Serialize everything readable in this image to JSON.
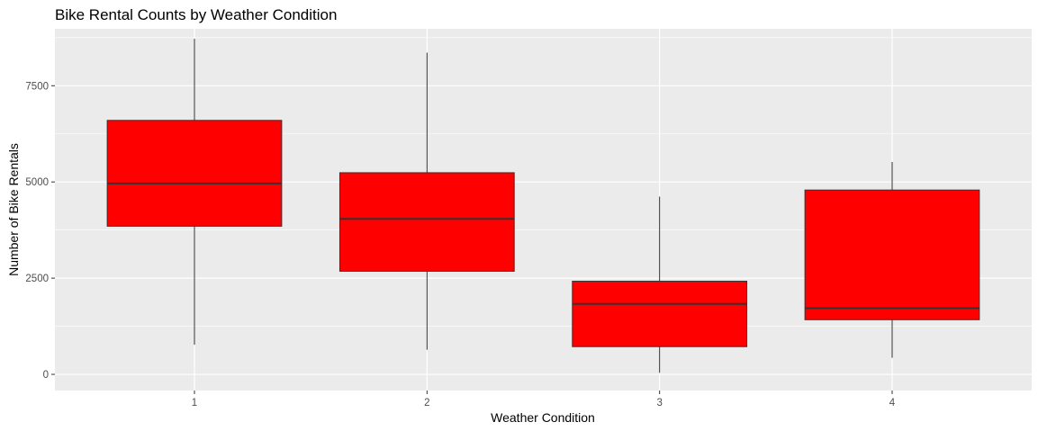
{
  "chart_data": {
    "type": "box",
    "title": "Bike Rental Counts by Weather Condition",
    "xlabel": "Weather Condition",
    "ylabel": "Number of Bike Rentals",
    "categories": [
      "1",
      "2",
      "3",
      "4"
    ],
    "ylim": [
      -420,
      8980
    ],
    "yticks": [
      0,
      2500,
      5000,
      7500
    ],
    "ytick_labels": [
      "0",
      "2500",
      "5000",
      "7500"
    ],
    "grid": true,
    "legend": "none",
    "series": [
      {
        "boxes": [
          {
            "category": "1",
            "min": 770,
            "q1": 3850,
            "median": 4960,
            "q3": 6600,
            "max": 8720
          },
          {
            "category": "2",
            "min": 640,
            "q1": 2680,
            "median": 4040,
            "q3": 5240,
            "max": 8360
          },
          {
            "category": "3",
            "min": 40,
            "q1": 720,
            "median": 1830,
            "q3": 2420,
            "max": 4620
          },
          {
            "category": "4",
            "min": 430,
            "q1": 1420,
            "median": 1720,
            "q3": 4790,
            "max": 5520
          }
        ]
      }
    ],
    "colors": {
      "panel_background": "#ebebeb",
      "grid": "#ffffff",
      "box_fill": "#ff0000",
      "box_outline": "#333333",
      "whisker": "#333333"
    }
  }
}
